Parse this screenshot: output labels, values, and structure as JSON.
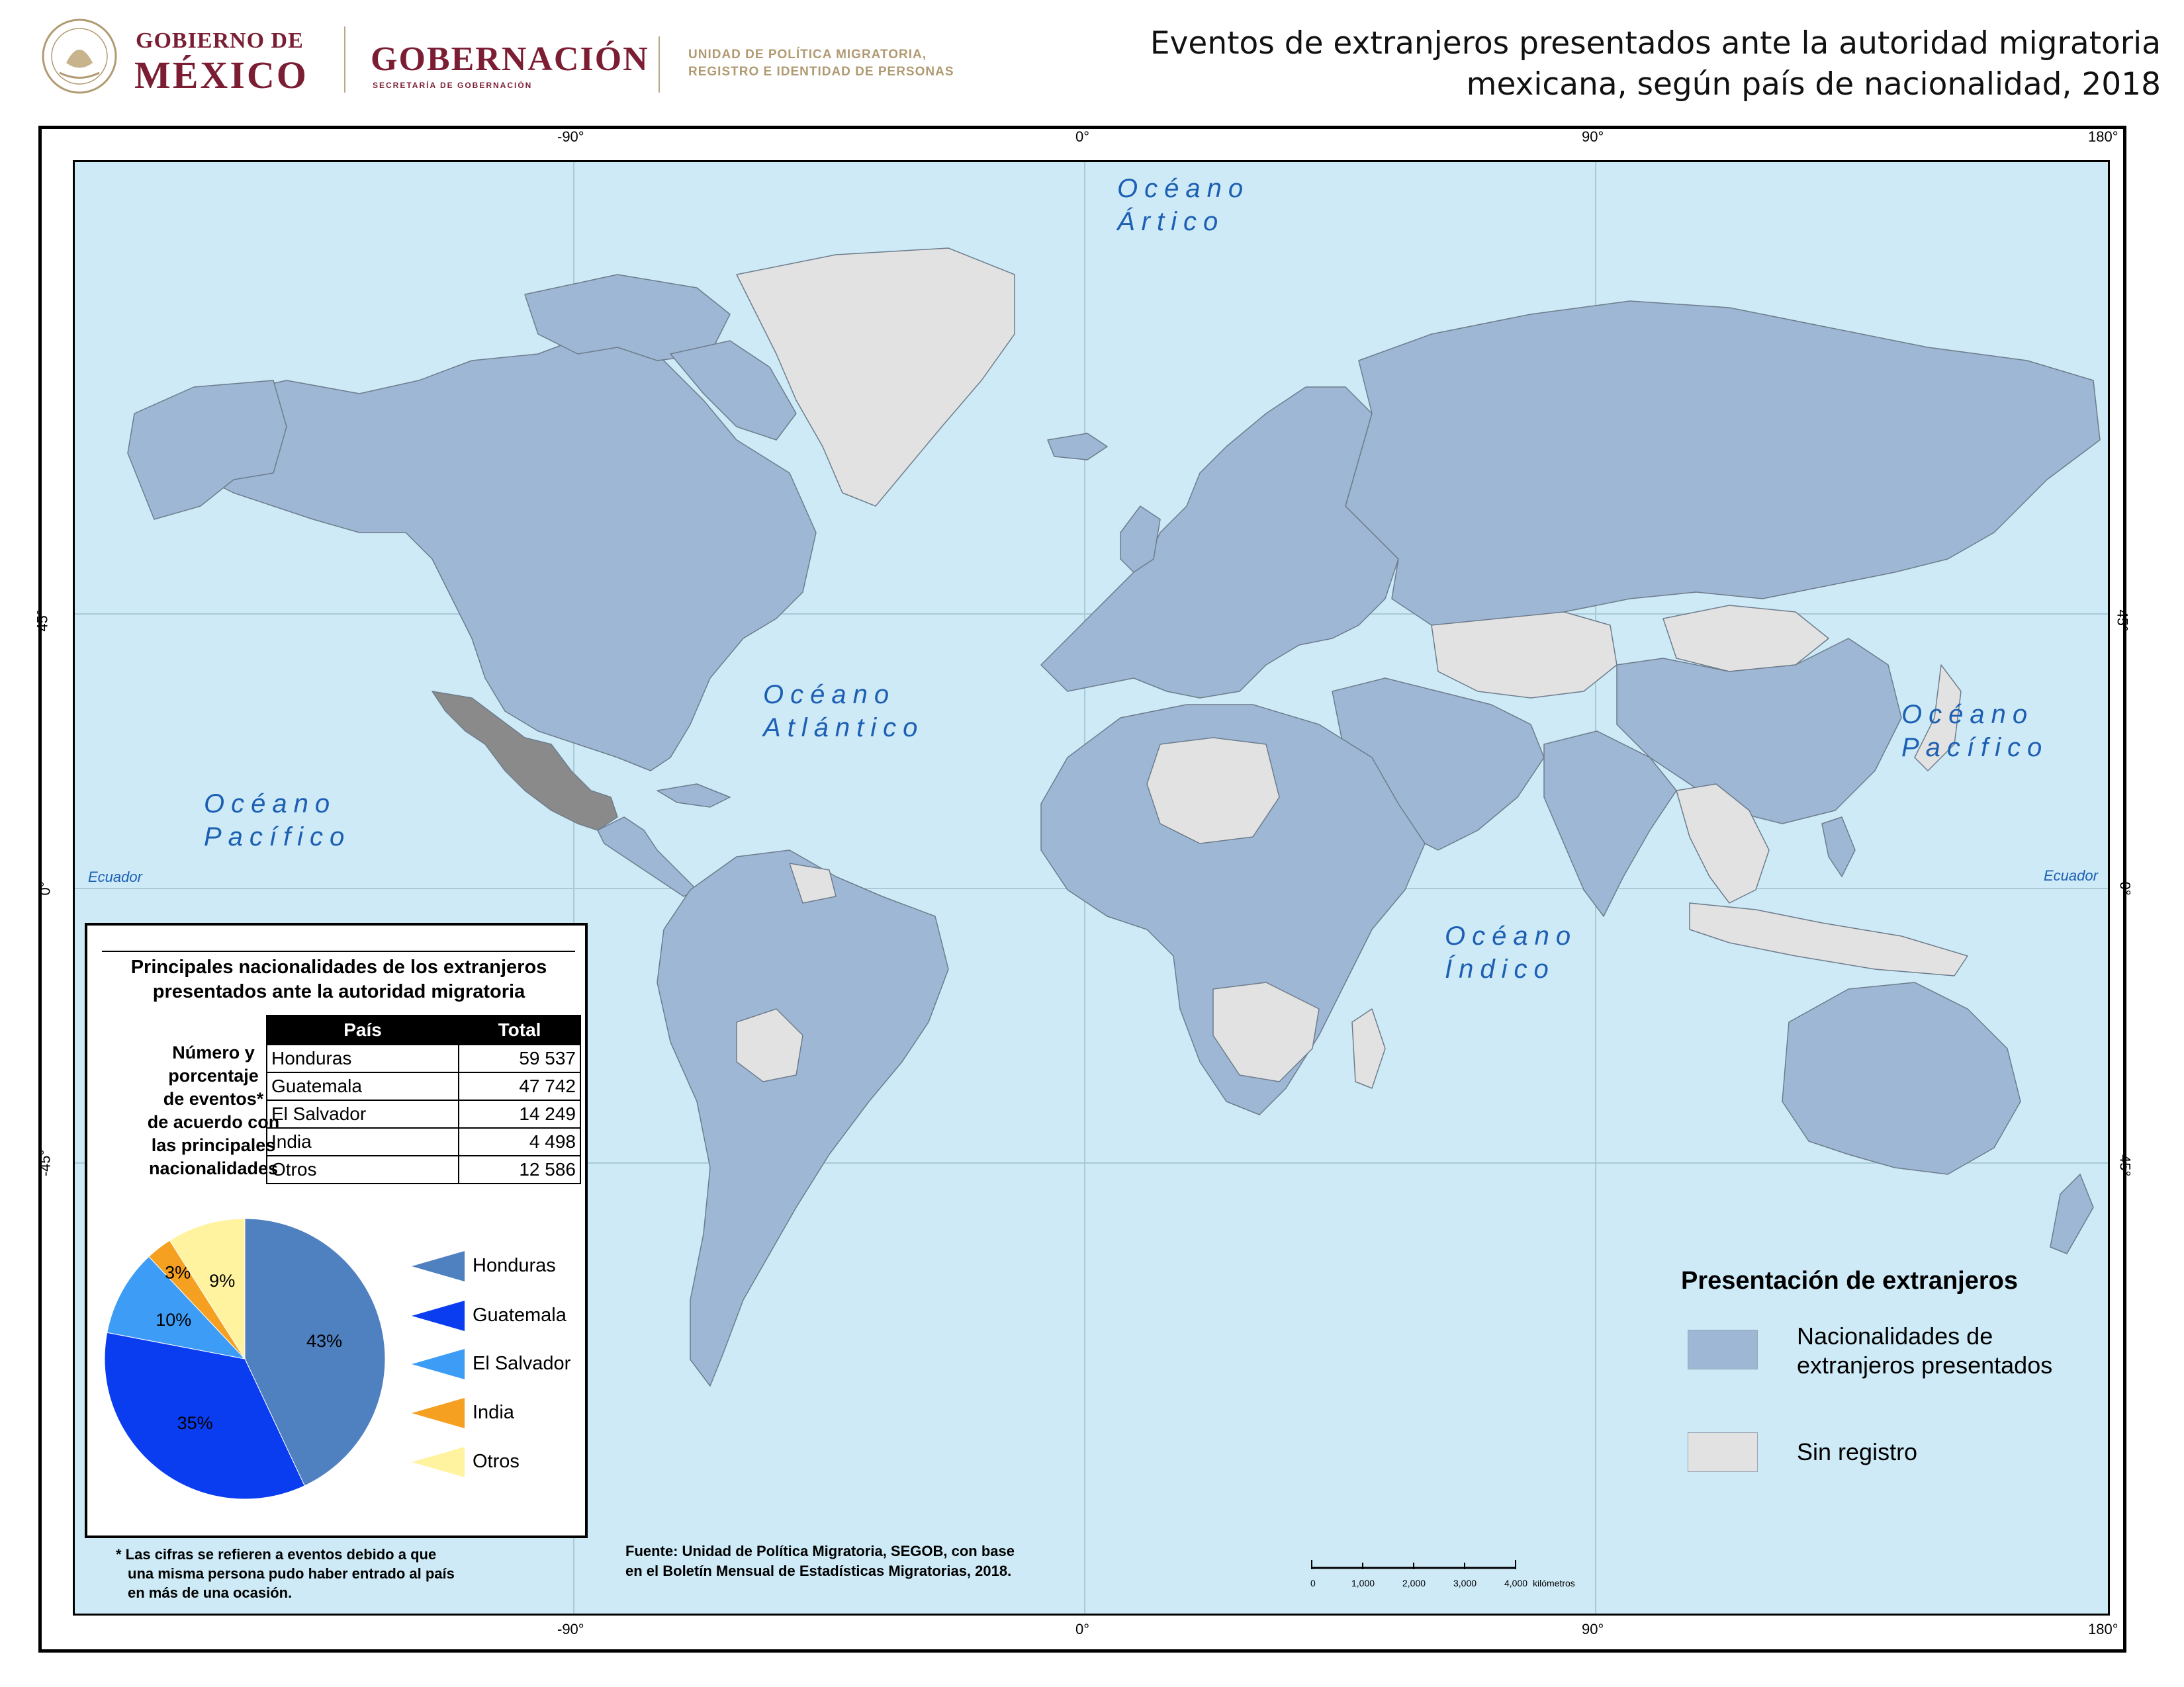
{
  "header": {
    "gob_line1": "GOBIERNO DE",
    "gob_line2": "MÉXICO",
    "gobernacion": "GOBERNACIÓN",
    "secretaria": "SECRETARÍA DE GOBERNACIÓN",
    "unidad_line1": "UNIDAD DE POLÍTICA MIGRATORIA,",
    "unidad_line2": "REGISTRO E IDENTIDAD DE PERSONAS",
    "title_line1": "Eventos de extranjeros presentados ante la autoridad migratoria",
    "title_line2": "mexicana, según país de nacionalidad, 2018"
  },
  "map": {
    "top_labels": [
      "-90°",
      "0°",
      "90°",
      "180°"
    ],
    "bottom_labels": [
      "-90°",
      "0°",
      "90°",
      "180°"
    ],
    "left_labels": [
      "45°",
      "0°",
      "-45°"
    ],
    "right_labels": [
      "45°",
      "0°",
      "-45°"
    ],
    "equator_label": "Ecuador",
    "oceans": {
      "artico": [
        "Océano",
        "Ártico"
      ],
      "atlantico": [
        "Océano",
        "Atlántico"
      ],
      "pacifico_w": [
        "Océano",
        "Pacífico"
      ],
      "pacifico_e": [
        "Océano",
        "Pacífico"
      ],
      "indico": [
        "Océano",
        "Índico"
      ]
    },
    "colors": {
      "ocean": "#cdeaf6",
      "registered": "#9db7d4",
      "no_record": "#e2e2e2",
      "mexico": "#8a8a8a",
      "border": "#6e7c8c"
    }
  },
  "panel": {
    "title_line1": "Principales nacionalidades de los extranjeros",
    "title_line2": "presentados ante la autoridad migratoria",
    "side_label": [
      "Número y",
      "porcentaje",
      "de eventos*",
      "de acuerdo con",
      "las principales",
      "nacionalidades"
    ],
    "table_headers": [
      "País",
      "Total"
    ],
    "rows": [
      {
        "country": "Honduras",
        "total": "59 537"
      },
      {
        "country": "Guatemala",
        "total": "47 742"
      },
      {
        "country": "El Salvador",
        "total": "14 249"
      },
      {
        "country": "India",
        "total": "4 498"
      },
      {
        "country": "Otros",
        "total": "12 586"
      }
    ],
    "pie": [
      {
        "name": "Honduras",
        "pct": 43,
        "label": "43%",
        "color": "#4f80c0"
      },
      {
        "name": "Guatemala",
        "pct": 35,
        "label": "35%",
        "color": "#0a3cf0"
      },
      {
        "name": "El Salvador",
        "pct": 10,
        "label": "10%",
        "color": "#3d9cf5"
      },
      {
        "name": "India",
        "pct": 3,
        "label": "3%",
        "color": "#f5a020"
      },
      {
        "name": "Otros",
        "pct": 9,
        "label": "9%",
        "color": "#fff3a0"
      }
    ],
    "legend": [
      "Honduras",
      "Guatemala",
      "El Salvador",
      "India",
      "Otros"
    ]
  },
  "footnote": [
    "* Las cifras se refieren a eventos debido a que",
    "una misma persona pudo haber entrado al país",
    "en más de una ocasión."
  ],
  "source": [
    "Fuente: Unidad de Política Migratoria, SEGOB, con base",
    "en el Boletín Mensual de Estadísticas Migratorias, 2018."
  ],
  "main_legend": {
    "title": "Presentación de extranjeros",
    "registered_line1": "Nacionalidades de",
    "registered_line2": "extranjeros presentados",
    "no_record": "Sin registro"
  },
  "scale": {
    "ticks": [
      "0",
      "1,000",
      "2,000",
      "3,000",
      "4,000"
    ],
    "unit": "kilómetros"
  }
}
